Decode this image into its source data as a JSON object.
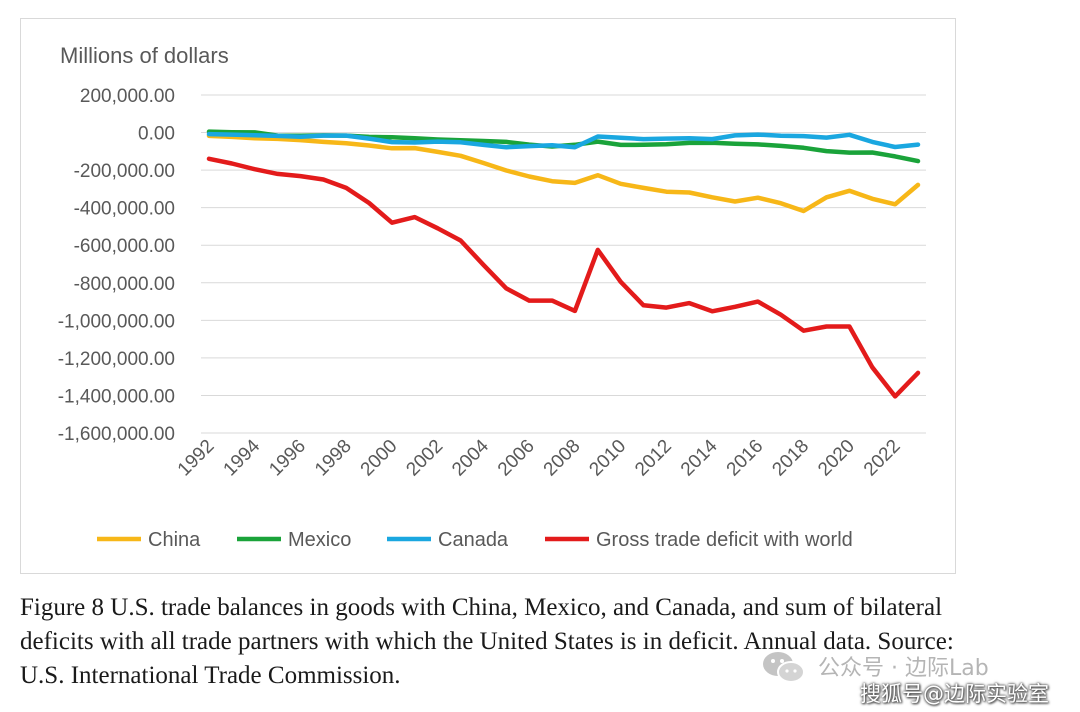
{
  "chart_data": {
    "type": "line",
    "ylabel": "Millions of dollars",
    "xlabel": "",
    "ylim": [
      -1600000,
      200000
    ],
    "y_ticks": [
      "200,000.00",
      "0.00",
      "-200,000.00",
      "-400,000.00",
      "-600,000.00",
      "-800,000.00",
      "-1,000,000.00",
      "-1,200,000.00",
      "-1,400,000.00",
      "-1,600,000.00"
    ],
    "y_tick_values": [
      200000,
      0,
      -200000,
      -400000,
      -600000,
      -800000,
      -1000000,
      -1200000,
      -1400000,
      -1600000
    ],
    "x": [
      1992,
      1993,
      1994,
      1995,
      1996,
      1997,
      1998,
      1999,
      2000,
      2001,
      2002,
      2003,
      2004,
      2005,
      2006,
      2007,
      2008,
      2009,
      2010,
      2011,
      2012,
      2013,
      2014,
      2015,
      2016,
      2017,
      2018,
      2019,
      2020,
      2021,
      2022,
      2023
    ],
    "x_tick_labels": [
      "1992",
      "1994",
      "1996",
      "1998",
      "2000",
      "2002",
      "2004",
      "2006",
      "2008",
      "2010",
      "2012",
      "2014",
      "2016",
      "2018",
      "2020",
      "2022"
    ],
    "grid": "horizontal",
    "legend_position": "bottom",
    "series": [
      {
        "name": "China",
        "color": "#f7b718",
        "values": [
          -18000,
          -23000,
          -30000,
          -34000,
          -40000,
          -50000,
          -57000,
          -69000,
          -84000,
          -83000,
          -103000,
          -124000,
          -162000,
          -202000,
          -234000,
          -259000,
          -268000,
          -227000,
          -273000,
          -295000,
          -315000,
          -319000,
          -345000,
          -367000,
          -347000,
          -376000,
          -418000,
          -345000,
          -310000,
          -353000,
          -382000,
          -279000
        ]
      },
      {
        "name": "Mexico",
        "color": "#1aa33a",
        "values": [
          5000,
          2000,
          1000,
          -16000,
          -17000,
          -15000,
          -16000,
          -23000,
          -25000,
          -30000,
          -37000,
          -41000,
          -45000,
          -50000,
          -64000,
          -74000,
          -65000,
          -48000,
          -66000,
          -65000,
          -62000,
          -55000,
          -54000,
          -60000,
          -63000,
          -71000,
          -81000,
          -99000,
          -107000,
          -106000,
          -127000,
          -152000
        ]
      },
      {
        "name": "Canada",
        "color": "#1aa7e0",
        "values": [
          -8000,
          -11000,
          -14000,
          -18000,
          -22000,
          -16000,
          -16000,
          -32000,
          -51000,
          -53000,
          -48000,
          -52000,
          -66000,
          -78000,
          -72000,
          -68000,
          -78000,
          -21000,
          -28000,
          -35000,
          -32000,
          -30000,
          -35000,
          -15000,
          -11000,
          -17000,
          -19000,
          -27000,
          -12000,
          -50000,
          -77000,
          -64000
        ]
      },
      {
        "name": "Gross trade deficit with world",
        "color": "#e31b1b",
        "values": [
          -140000,
          -165000,
          -195000,
          -220000,
          -232000,
          -250000,
          -295000,
          -375000,
          -480000,
          -450000,
          -510000,
          -575000,
          -705000,
          -830000,
          -895000,
          -895000,
          -950000,
          -625000,
          -795000,
          -920000,
          -932000,
          -908000,
          -952000,
          -928000,
          -900000,
          -970000,
          -1055000,
          -1033000,
          -1033000,
          -1250000,
          -1405000,
          -1280000
        ]
      }
    ]
  },
  "caption": {
    "line1": "Figure 8   U.S. trade balances in goods with China, Mexico, and Canada, and sum of bilateral",
    "line2": "deficits with all trade partners with which the United States is in deficit. Annual data. Source:",
    "line3": "U.S. International Trade Commission."
  },
  "watermark": {
    "line1": "公众号 · 边际Lab",
    "line2": "搜狐号@边际实验室"
  }
}
